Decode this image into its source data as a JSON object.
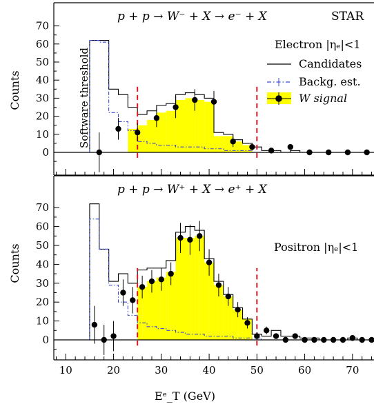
{
  "chart_data": [
    {
      "type": "histogram",
      "panel": "top",
      "title": "p + p → W⁻ + X → e⁻ + X",
      "corner_label": "STAR",
      "legend_header": "Electron |ηₑ|<1",
      "ylabel": "Counts",
      "threshold_label": "Software threshold",
      "ylim": [
        -8,
        75
      ],
      "yticks": [
        0,
        10,
        20,
        30,
        40,
        50,
        60,
        70
      ],
      "xlim": [
        7.5,
        74.5
      ],
      "cut_lines": [
        25,
        50
      ],
      "legend": [
        {
          "key": "candidates",
          "label": "Candidates",
          "style": "solid-line",
          "color": "#000000"
        },
        {
          "key": "background",
          "label": "Backg. est.",
          "style": "dash-dot-line",
          "color": "#3b4bd6"
        },
        {
          "key": "signal",
          "label": "W signal",
          "style": "filled-marker-on-yellow",
          "color": "#ffff00"
        }
      ],
      "bin_edges": [
        15,
        17,
        19,
        21,
        23,
        25,
        27,
        29,
        31,
        33,
        35,
        37,
        39,
        41,
        43,
        45,
        47,
        49,
        51,
        53,
        55,
        57,
        59,
        61,
        63,
        65,
        67,
        69,
        71,
        73,
        75
      ],
      "series": [
        {
          "key": "candidates",
          "values": [
            62,
            62,
            35,
            32,
            25,
            21,
            23,
            26,
            27,
            32,
            33,
            32,
            30,
            11,
            10,
            7,
            5,
            3,
            1,
            1,
            0,
            1,
            0,
            0,
            0,
            0,
            0,
            0,
            0,
            0
          ]
        },
        {
          "key": "background",
          "values": [
            62,
            61,
            22,
            17,
            12,
            6,
            5,
            4,
            4,
            3,
            3,
            3,
            2,
            2,
            1,
            1,
            1,
            0,
            0,
            0,
            0,
            0,
            0,
            0,
            0,
            0,
            0,
            0,
            0,
            0
          ]
        },
        {
          "key": "signal",
          "fill_start": 23,
          "fill_end": 49,
          "values": [
            0,
            0,
            13,
            15,
            13,
            15,
            18,
            22,
            23,
            29,
            30,
            29,
            28,
            9,
            9,
            6,
            4,
            3,
            1,
            1,
            0,
            1,
            0,
            0,
            0,
            0,
            0,
            0,
            0,
            0
          ]
        }
      ],
      "signal_points": [
        {
          "x": 17,
          "y": 0,
          "err": 11
        },
        {
          "x": 21,
          "y": 13,
          "err": 6
        },
        {
          "x": 25,
          "y": 11,
          "err": 5
        },
        {
          "x": 29,
          "y": 19,
          "err": 5
        },
        {
          "x": 33,
          "y": 25,
          "err": 6
        },
        {
          "x": 37,
          "y": 29,
          "err": 6
        },
        {
          "x": 41,
          "y": 28,
          "err": 6
        },
        {
          "x": 45,
          "y": 6,
          "err": 3
        },
        {
          "x": 49,
          "y": 3,
          "err": 2
        },
        {
          "x": 53,
          "y": 1,
          "err": 1
        },
        {
          "x": 57,
          "y": 3,
          "err": 1.5
        },
        {
          "x": 61,
          "y": 0,
          "err": 0.5
        },
        {
          "x": 65,
          "y": 0,
          "err": 0.5
        },
        {
          "x": 69,
          "y": 0,
          "err": 0.5
        },
        {
          "x": 73,
          "y": 0,
          "err": 0.5
        }
      ]
    },
    {
      "type": "histogram",
      "panel": "bottom",
      "title": "p + p → W⁺ + X → e⁺ + X",
      "legend_header": "Positron |ηₑ|<1",
      "ylabel": "Counts",
      "xlabel": "Eᵉ_T (GeV)",
      "ylim": [
        -8,
        75
      ],
      "yticks": [
        0,
        10,
        20,
        30,
        40,
        50,
        60,
        70
      ],
      "xlim": [
        7.5,
        74.5
      ],
      "xticks": [
        10,
        20,
        30,
        40,
        50,
        60,
        70
      ],
      "cut_lines": [
        25,
        50
      ],
      "bin_edges": [
        15,
        16,
        17,
        18,
        19,
        20,
        21,
        22,
        23,
        24,
        25,
        26,
        27,
        28,
        29,
        30,
        31,
        32,
        33,
        34,
        35,
        36,
        37,
        38,
        39,
        40,
        41,
        42,
        43,
        44,
        45,
        46,
        47,
        48,
        49,
        50,
        51,
        52,
        53,
        54,
        55,
        56,
        57,
        58,
        59,
        60,
        61,
        62,
        63,
        64,
        65,
        66,
        67,
        68,
        69,
        70,
        71,
        72,
        73,
        74,
        75
      ],
      "series": [
        {
          "key": "candidates",
          "values": [
            72,
            72,
            48,
            48,
            31,
            31,
            35,
            35,
            30,
            30,
            37,
            37,
            38,
            38,
            38,
            38,
            42,
            42,
            57,
            57,
            60,
            60,
            58,
            58,
            43,
            43,
            31,
            31,
            24,
            24,
            17,
            17,
            11,
            11,
            3,
            3,
            2,
            2,
            5,
            5,
            2,
            2,
            2,
            2,
            1,
            1,
            1,
            1,
            0,
            0,
            0,
            0,
            0,
            0,
            1,
            1,
            0,
            0,
            0,
            0
          ]
        },
        {
          "key": "background",
          "values": [
            64,
            64,
            48,
            48,
            29,
            29,
            20,
            20,
            13,
            13,
            9,
            9,
            7,
            7,
            6,
            6,
            5,
            5,
            4,
            4,
            3,
            3,
            3,
            3,
            2,
            2,
            2,
            2,
            2,
            2,
            1,
            1,
            1,
            1,
            1,
            1,
            0,
            0,
            0,
            0,
            0,
            0,
            0,
            0,
            0,
            0,
            0,
            0,
            0,
            0,
            0,
            0,
            0,
            0,
            0,
            0,
            0,
            0,
            0,
            0
          ]
        },
        {
          "key": "signal",
          "fill_start": 25,
          "fill_end": 49,
          "values": [
            0,
            0,
            0,
            0,
            0,
            0,
            0,
            0,
            0,
            0,
            28,
            28,
            31,
            31,
            33,
            33,
            36,
            36,
            54,
            54,
            54,
            54,
            55,
            55,
            41,
            41,
            29,
            29,
            23,
            23,
            16,
            16,
            11,
            11,
            0,
            0,
            0,
            0,
            0,
            0,
            0,
            0,
            0,
            0,
            0,
            0,
            0,
            0,
            0,
            0,
            0,
            0,
            0,
            0,
            0,
            0,
            0,
            0,
            0,
            0
          ]
        }
      ],
      "signal_points": [
        {
          "x": 16,
          "y": 8,
          "err": 10
        },
        {
          "x": 18,
          "y": 0,
          "err": 8
        },
        {
          "x": 20,
          "y": 2,
          "err": 8
        },
        {
          "x": 22,
          "y": 25,
          "err": 7
        },
        {
          "x": 24,
          "y": 21,
          "err": 7
        },
        {
          "x": 26,
          "y": 28,
          "err": 6
        },
        {
          "x": 28,
          "y": 31,
          "err": 6
        },
        {
          "x": 30,
          "y": 32,
          "err": 6
        },
        {
          "x": 32,
          "y": 35,
          "err": 6
        },
        {
          "x": 34,
          "y": 54,
          "err": 8
        },
        {
          "x": 36,
          "y": 53,
          "err": 8
        },
        {
          "x": 38,
          "y": 55,
          "err": 8
        },
        {
          "x": 40,
          "y": 41,
          "err": 7
        },
        {
          "x": 42,
          "y": 29,
          "err": 6
        },
        {
          "x": 44,
          "y": 23,
          "err": 5
        },
        {
          "x": 46,
          "y": 16,
          "err": 4
        },
        {
          "x": 48,
          "y": 9,
          "err": 3
        },
        {
          "x": 50,
          "y": 2,
          "err": 2
        },
        {
          "x": 52,
          "y": 5,
          "err": 2
        },
        {
          "x": 54,
          "y": 2,
          "err": 1
        },
        {
          "x": 56,
          "y": 0,
          "err": 0.5
        },
        {
          "x": 58,
          "y": 2,
          "err": 1
        },
        {
          "x": 60,
          "y": 0,
          "err": 0.5
        },
        {
          "x": 62,
          "y": 0,
          "err": 0.5
        },
        {
          "x": 64,
          "y": 0,
          "err": 0.5
        },
        {
          "x": 66,
          "y": 0,
          "err": 0.5
        },
        {
          "x": 68,
          "y": 0,
          "err": 0.5
        },
        {
          "x": 70,
          "y": 1,
          "err": 0.5
        },
        {
          "x": 72,
          "y": 0,
          "err": 0.5
        },
        {
          "x": 74,
          "y": 0,
          "err": 0.5
        }
      ]
    }
  ]
}
